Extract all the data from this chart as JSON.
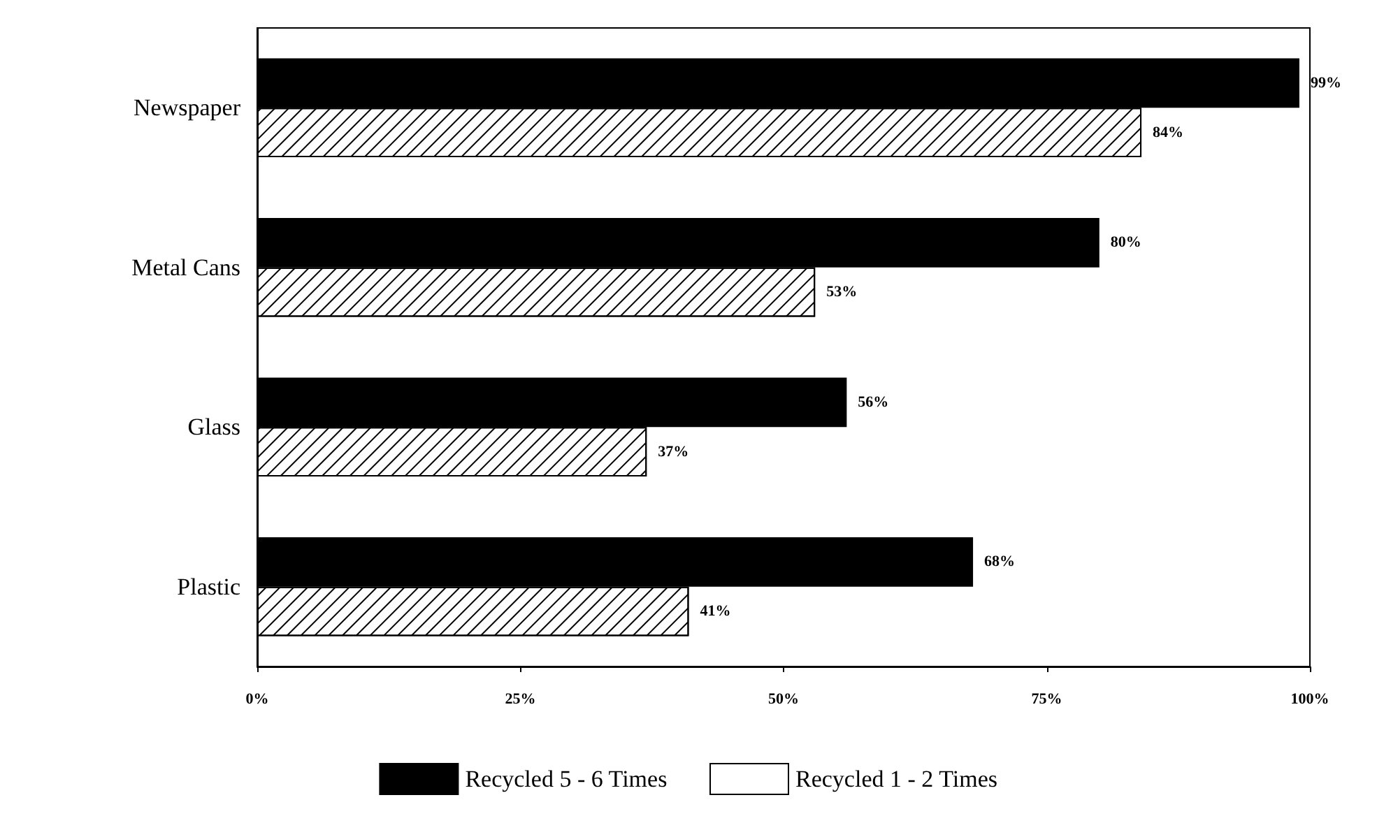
{
  "chart_data": {
    "type": "bar",
    "orientation": "horizontal",
    "categories": [
      "Newspaper",
      "Metal Cans",
      "Glass",
      "Plastic"
    ],
    "series": [
      {
        "name": "Recycled 5 - 6 Times",
        "color": "#000000",
        "values": [
          99,
          80,
          56,
          68
        ],
        "value_labels": [
          "99%",
          "80%",
          "56%",
          "68%"
        ]
      },
      {
        "name": "Recycled 1 - 2 Times",
        "color": "#ffffff",
        "values": [
          84,
          53,
          37,
          41
        ],
        "value_labels": [
          "84%",
          "53%",
          "37%",
          "41%"
        ]
      }
    ],
    "xlim": [
      0,
      100
    ],
    "xticks": [
      {
        "value": 0,
        "label": "0%"
      },
      {
        "value": 25,
        "label": "25%"
      },
      {
        "value": 50,
        "label": "50%"
      },
      {
        "value": 75,
        "label": "75%"
      },
      {
        "value": 100,
        "label": "100%"
      }
    ],
    "grid": false,
    "legend": "bottom"
  }
}
